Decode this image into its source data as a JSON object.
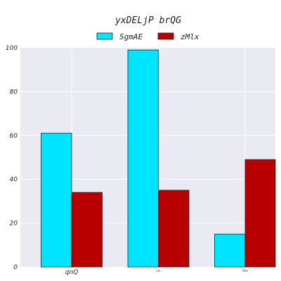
{
  "chart_data": {
    "type": "bar",
    "title": "yxDELjP brQG",
    "xlabel": "",
    "ylabel": "",
    "categories": [
      "qnQ",
      "Lm",
      "dMv"
    ],
    "series": [
      {
        "name": "SgmAE",
        "values": [
          61,
          99,
          15
        ],
        "color": "#00e5ff"
      },
      {
        "name": "zMlx",
        "values": [
          34,
          35,
          49
        ],
        "color": "#b80000"
      }
    ],
    "ylim": [
      0,
      100
    ],
    "yticks": [
      0,
      20,
      40,
      60,
      80,
      100
    ],
    "grid": true,
    "legend_position": "top-center",
    "plot_background": "#eaeaf2"
  }
}
